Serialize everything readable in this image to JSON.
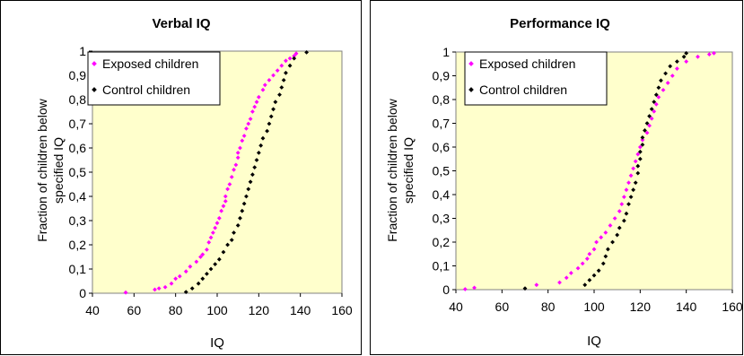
{
  "chart_data": [
    {
      "type": "scatter",
      "title": "Verbal IQ",
      "xlabel": "IQ",
      "ylabel_lines": [
        "Fraction of children below",
        "specified IQ"
      ],
      "xlim": [
        40,
        160
      ],
      "ylim": [
        0,
        1
      ],
      "x_ticks": [
        "40",
        "60",
        "80",
        "100",
        "120",
        "140",
        "160"
      ],
      "y_ticks": [
        "0",
        "0,1",
        "0,2",
        "0,3",
        "0,4",
        "0,5",
        "0,6",
        "0,7",
        "0,8",
        "0,9",
        "1"
      ],
      "grid": false,
      "legend_position": "top-left",
      "plot_background": "#FFFFCC",
      "series": [
        {
          "name": "Exposed children",
          "color": "#FF00FF",
          "points": [
            [
              56,
              0.003
            ],
            [
              70,
              0.015
            ],
            [
              72,
              0.02
            ],
            [
              75,
              0.025
            ],
            [
              78,
              0.04
            ],
            [
              80,
              0.06
            ],
            [
              82,
              0.07
            ],
            [
              85,
              0.09
            ],
            [
              87,
              0.11
            ],
            [
              90,
              0.13
            ],
            [
              92,
              0.15
            ],
            [
              93,
              0.16
            ],
            [
              95,
              0.18
            ],
            [
              96,
              0.21
            ],
            [
              97,
              0.23
            ],
            [
              98,
              0.25
            ],
            [
              99,
              0.27
            ],
            [
              100,
              0.29
            ],
            [
              101,
              0.31
            ],
            [
              102,
              0.34
            ],
            [
              103,
              0.36
            ],
            [
              104,
              0.38
            ],
            [
              104,
              0.4
            ],
            [
              105,
              0.43
            ],
            [
              106,
              0.45
            ],
            [
              107,
              0.48
            ],
            [
              108,
              0.51
            ],
            [
              109,
              0.53
            ],
            [
              110,
              0.56
            ],
            [
              110,
              0.58
            ],
            [
              111,
              0.6
            ],
            [
              112,
              0.63
            ],
            [
              113,
              0.65
            ],
            [
              114,
              0.68
            ],
            [
              115,
              0.7
            ],
            [
              116,
              0.72
            ],
            [
              117,
              0.75
            ],
            [
              118,
              0.77
            ],
            [
              119,
              0.79
            ],
            [
              120,
              0.81
            ],
            [
              122,
              0.84
            ],
            [
              123,
              0.86
            ],
            [
              125,
              0.88
            ],
            [
              127,
              0.9
            ],
            [
              129,
              0.92
            ],
            [
              131,
              0.94
            ],
            [
              133,
              0.96
            ],
            [
              135,
              0.97
            ],
            [
              137,
              0.98
            ],
            [
              138,
              0.99
            ]
          ]
        },
        {
          "name": "Control children",
          "color": "#000000",
          "points": [
            [
              85,
              0.005
            ],
            [
              88,
              0.02
            ],
            [
              91,
              0.04
            ],
            [
              93,
              0.06
            ],
            [
              95,
              0.08
            ],
            [
              97,
              0.1
            ],
            [
              99,
              0.12
            ],
            [
              101,
              0.14
            ],
            [
              103,
              0.17
            ],
            [
              105,
              0.2
            ],
            [
              107,
              0.22
            ],
            [
              108,
              0.25
            ],
            [
              110,
              0.28
            ],
            [
              111,
              0.31
            ],
            [
              112,
              0.34
            ],
            [
              113,
              0.37
            ],
            [
              114,
              0.4
            ],
            [
              115,
              0.43
            ],
            [
              116,
              0.46
            ],
            [
              117,
              0.49
            ],
            [
              118,
              0.52
            ],
            [
              119,
              0.55
            ],
            [
              120,
              0.58
            ],
            [
              121,
              0.61
            ],
            [
              122,
              0.64
            ],
            [
              124,
              0.67
            ],
            [
              125,
              0.7
            ],
            [
              126,
              0.73
            ],
            [
              127,
              0.76
            ],
            [
              128,
              0.79
            ],
            [
              130,
              0.82
            ],
            [
              131,
              0.85
            ],
            [
              132,
              0.88
            ],
            [
              133,
              0.91
            ],
            [
              135,
              0.94
            ],
            [
              137,
              0.97
            ],
            [
              143,
              0.995
            ]
          ]
        }
      ]
    },
    {
      "type": "scatter",
      "title": "Performance IQ",
      "xlabel": "IQ",
      "ylabel_lines": [
        "Fraction of children below",
        "specified IQ"
      ],
      "xlim": [
        40,
        160
      ],
      "ylim": [
        0,
        1
      ],
      "x_ticks": [
        "40",
        "60",
        "80",
        "100",
        "120",
        "140",
        "160"
      ],
      "y_ticks": [
        "0",
        "0,1",
        "0,2",
        "0,3",
        "0,4",
        "0,5",
        "0,6",
        "0,7",
        "0,8",
        "0,9",
        "1"
      ],
      "grid": false,
      "legend_position": "top-left",
      "plot_background": "#FFFFCC",
      "series": [
        {
          "name": "Exposed children",
          "color": "#FF00FF",
          "points": [
            [
              44,
              0.002
            ],
            [
              48,
              0.008
            ],
            [
              75,
              0.02
            ],
            [
              85,
              0.03
            ],
            [
              88,
              0.05
            ],
            [
              90,
              0.07
            ],
            [
              93,
              0.09
            ],
            [
              95,
              0.11
            ],
            [
              97,
              0.13
            ],
            [
              98,
              0.15
            ],
            [
              100,
              0.17
            ],
            [
              101,
              0.2
            ],
            [
              103,
              0.22
            ],
            [
              105,
              0.24
            ],
            [
              107,
              0.27
            ],
            [
              109,
              0.3
            ],
            [
              111,
              0.33
            ],
            [
              112,
              0.36
            ],
            [
              113,
              0.39
            ],
            [
              114,
              0.42
            ],
            [
              115,
              0.45
            ],
            [
              116,
              0.48
            ],
            [
              117,
              0.51
            ],
            [
              118,
              0.54
            ],
            [
              119,
              0.57
            ],
            [
              120,
              0.6
            ],
            [
              121,
              0.63
            ],
            [
              123,
              0.66
            ],
            [
              124,
              0.69
            ],
            [
              125,
              0.72
            ],
            [
              126,
              0.75
            ],
            [
              127,
              0.78
            ],
            [
              128,
              0.81
            ],
            [
              130,
              0.84
            ],
            [
              132,
              0.87
            ],
            [
              134,
              0.9
            ],
            [
              136,
              0.93
            ],
            [
              140,
              0.96
            ],
            [
              145,
              0.98
            ],
            [
              150,
              0.99
            ],
            [
              152,
              0.995
            ]
          ]
        },
        {
          "name": "Control children",
          "color": "#000000",
          "points": [
            [
              70,
              0.005
            ],
            [
              96,
              0.02
            ],
            [
              98,
              0.04
            ],
            [
              100,
              0.06
            ],
            [
              102,
              0.08
            ],
            [
              104,
              0.11
            ],
            [
              105,
              0.14
            ],
            [
              106,
              0.17
            ],
            [
              108,
              0.2
            ],
            [
              110,
              0.23
            ],
            [
              111,
              0.26
            ],
            [
              113,
              0.29
            ],
            [
              114,
              0.32
            ],
            [
              115,
              0.36
            ],
            [
              116,
              0.39
            ],
            [
              117,
              0.42
            ],
            [
              118,
              0.45
            ],
            [
              119,
              0.49
            ],
            [
              119,
              0.52
            ],
            [
              120,
              0.55
            ],
            [
              120,
              0.58
            ],
            [
              121,
              0.61
            ],
            [
              121,
              0.64
            ],
            [
              122,
              0.67
            ],
            [
              123,
              0.7
            ],
            [
              124,
              0.73
            ],
            [
              125,
              0.76
            ],
            [
              126,
              0.79
            ],
            [
              127,
              0.82
            ],
            [
              128,
              0.85
            ],
            [
              129,
              0.88
            ],
            [
              131,
              0.91
            ],
            [
              133,
              0.94
            ],
            [
              136,
              0.96
            ],
            [
              139,
              0.98
            ],
            [
              140,
              0.995
            ]
          ]
        }
      ]
    }
  ]
}
